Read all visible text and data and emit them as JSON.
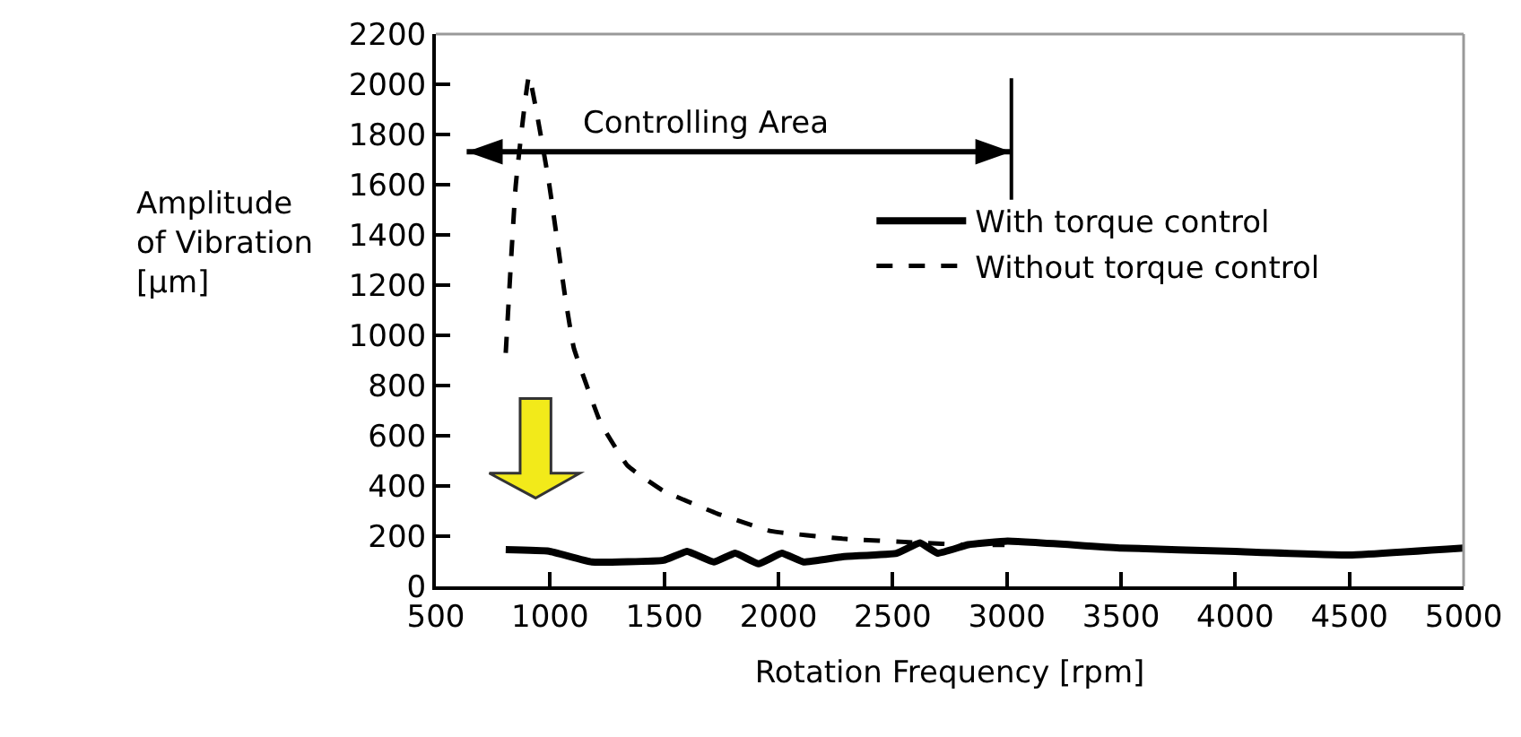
{
  "chart_data": {
    "type": "line",
    "xlabel": "Rotation Frequency [rpm]",
    "ylabel": "Amplitude\nof Vibration\n[μm]",
    "xlim": [
      500,
      5000
    ],
    "xticks": [
      500,
      1000,
      1500,
      2000,
      2500,
      3000,
      3500,
      4000,
      4500,
      5000
    ],
    "ylim": [
      0,
      2200
    ],
    "yticks": [
      0,
      200,
      400,
      600,
      800,
      1000,
      1200,
      1400,
      1600,
      1800,
      2000,
      2200
    ],
    "legend": "right",
    "marker": "none",
    "annotations": [
      "Controlling Area"
    ],
    "series": [
      {
        "name": "With torque control",
        "color": "#000000",
        "line_style": "solid",
        "x": [
          806,
          995,
          1183,
          1497,
          1600,
          1717,
          1811,
          1913,
          2015,
          2110,
          2280,
          2517,
          2620,
          2697,
          2831,
          3003,
          3500,
          4000,
          4500,
          5000
        ],
        "values": [
          146,
          140,
          97,
          104,
          139,
          97,
          132,
          90,
          132,
          97,
          118,
          132,
          173,
          132,
          166,
          180,
          153,
          139,
          125,
          153
        ]
      },
      {
        "name": "Without torque control",
        "color": "#000000",
        "line_style": "dashed",
        "x": [
          806,
          850,
          908,
          995,
          1065,
          1104,
          1222,
          1340,
          1497,
          1732,
          1968,
          2280,
          2596,
          2831,
          2990
        ],
        "values": [
          930,
          1600,
          2033,
          1610,
          1160,
          950,
          650,
          480,
          380,
          290,
          220,
          190,
          175,
          165,
          165
        ]
      }
    ]
  }
}
